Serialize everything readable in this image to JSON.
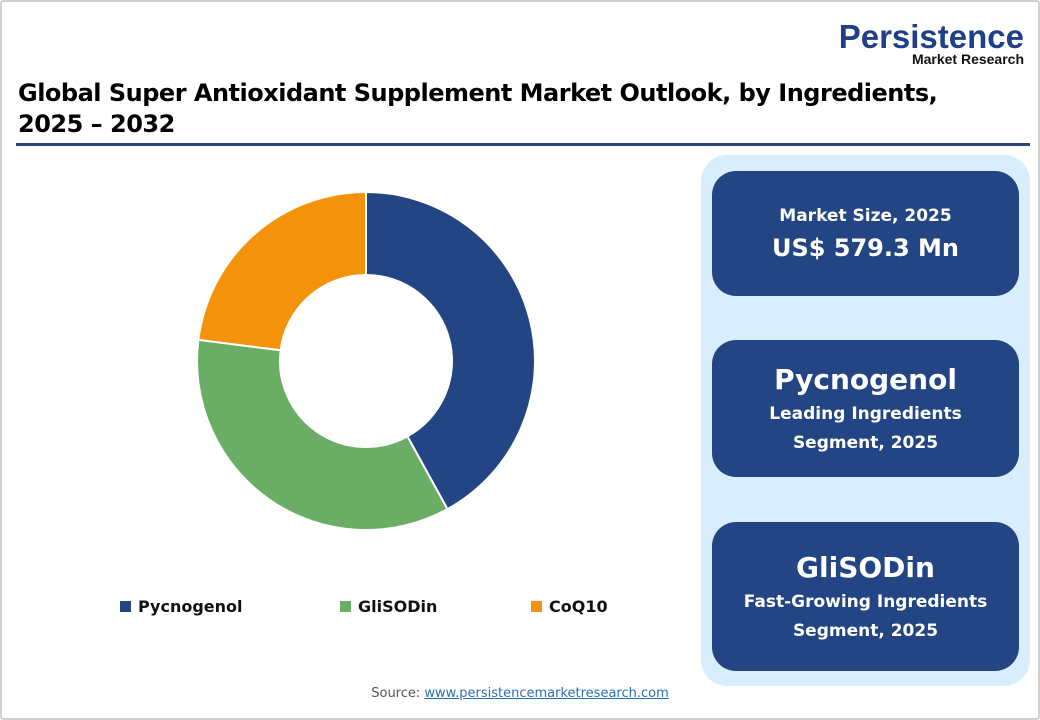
{
  "logo": {
    "main": "Persistence",
    "sub": "Market Research"
  },
  "title": {
    "line1": "Global Super Antioxidant Supplement Market Outlook, by Ingredients,",
    "line2": "2025 – 2032"
  },
  "colors": {
    "pycnogenol": "#234583",
    "glisodin": "#6aae66",
    "coq10": "#f5920b",
    "panel": "#d9eefc",
    "card": "#234583",
    "rule": "#2a4578"
  },
  "legend": [
    {
      "label": "Pycnogenol",
      "color": "#234583"
    },
    {
      "label": "GliSODin",
      "color": "#6aae66"
    },
    {
      "label": "CoQ10",
      "color": "#f5920b"
    }
  ],
  "cards": {
    "market_size": {
      "label": "Market Size, 2025",
      "value": "US$ 579.3 Mn"
    },
    "leading": {
      "name": "Pycnogenol",
      "line1": "Leading Ingredients",
      "line2": "Segment, 2025"
    },
    "fastest": {
      "name": "GliSODin",
      "line1": "Fast-Growing Ingredients",
      "line2": "Segment, 2025"
    }
  },
  "source": {
    "label": "Source:",
    "link": "www.persistencemarketresearch.com"
  },
  "chart_data": {
    "type": "pie",
    "subtype": "donut",
    "title": "Global Super Antioxidant Supplement Market Outlook, by Ingredients, 2025 – 2032",
    "categories": [
      "Pycnogenol",
      "GliSODin",
      "CoQ10"
    ],
    "values": [
      42,
      35,
      23
    ],
    "unit": "% share (estimated from slice angles)",
    "colors": [
      "#234583",
      "#6aae66",
      "#f5920b"
    ],
    "start_angle": "12 o'clock, clockwise",
    "legend_position": "bottom"
  }
}
